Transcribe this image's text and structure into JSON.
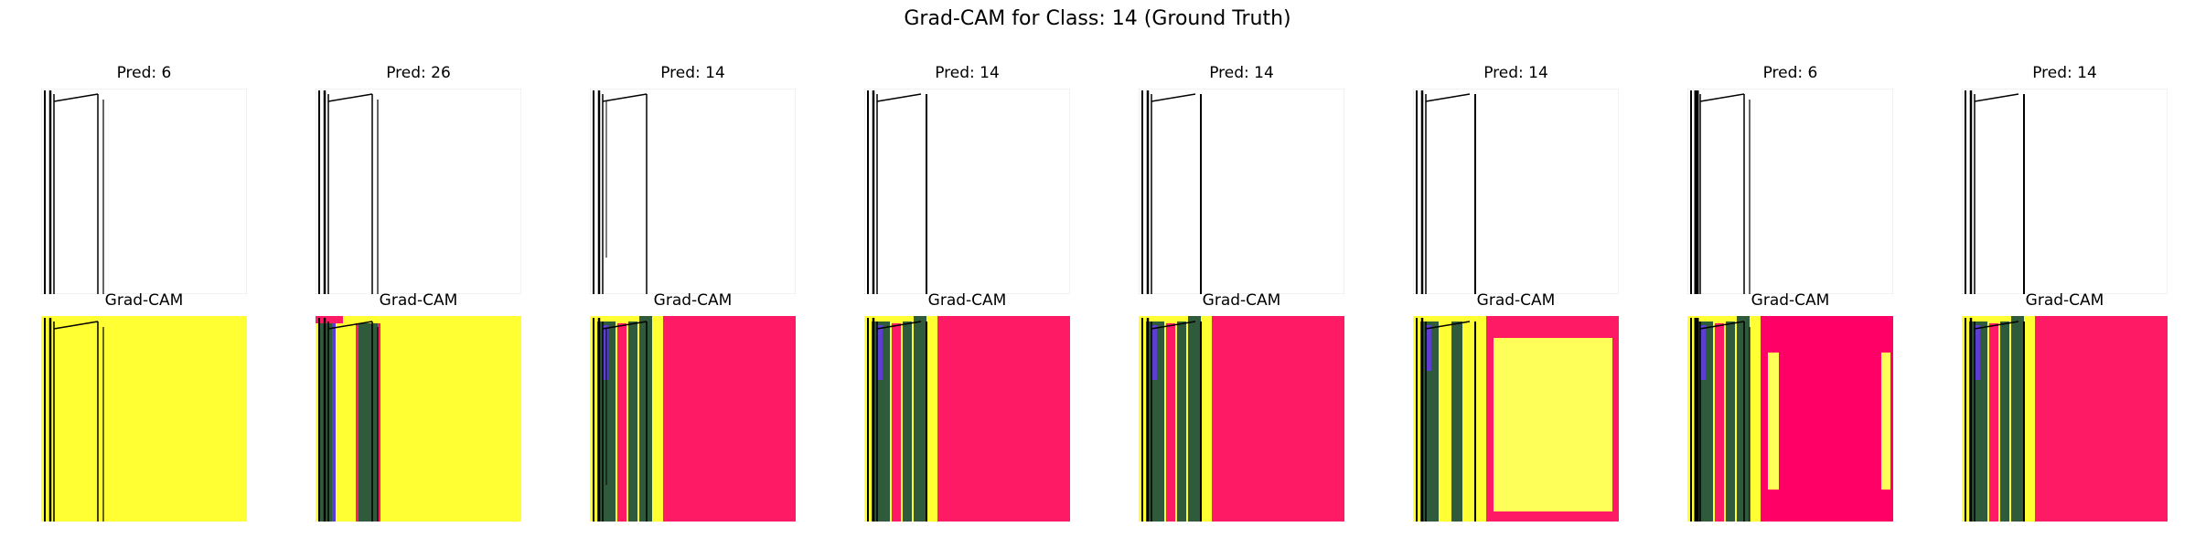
{
  "figure": {
    "title": "Grad-CAM for Class: 14 (Ground Truth)"
  },
  "colors": {
    "sketch_bg": "#ffffff",
    "ink": "#000000",
    "cam_yellow": "#ffff33",
    "cam_light_yellow": "#ffff5a",
    "cam_pink": "#ff1a66",
    "cam_deep_pink": "#ff0066",
    "cam_green": "#2f5a3c",
    "cam_blue": "#5a3fd0"
  },
  "panels": [
    {
      "pred_label": "Pred: 6",
      "cam_label": "Grad-CAM",
      "heatmap_style": "yellow"
    },
    {
      "pred_label": "Pred: 26",
      "cam_label": "Grad-CAM",
      "heatmap_style": "yellow-with-bands"
    },
    {
      "pred_label": "Pred: 14",
      "cam_label": "Grad-CAM",
      "heatmap_style": "pink-right"
    },
    {
      "pred_label": "Pred: 14",
      "cam_label": "Grad-CAM",
      "heatmap_style": "pink-right"
    },
    {
      "pred_label": "Pred: 14",
      "cam_label": "Grad-CAM",
      "heatmap_style": "pink-right"
    },
    {
      "pred_label": "Pred: 14",
      "cam_label": "Grad-CAM",
      "heatmap_style": "pink-frame-yellow-center"
    },
    {
      "pred_label": "Pred: 6",
      "cam_label": "Grad-CAM",
      "heatmap_style": "pink-right-yellow-strips"
    },
    {
      "pred_label": "Pred: 14",
      "cam_label": "Grad-CAM",
      "heatmap_style": "pink-right"
    }
  ]
}
